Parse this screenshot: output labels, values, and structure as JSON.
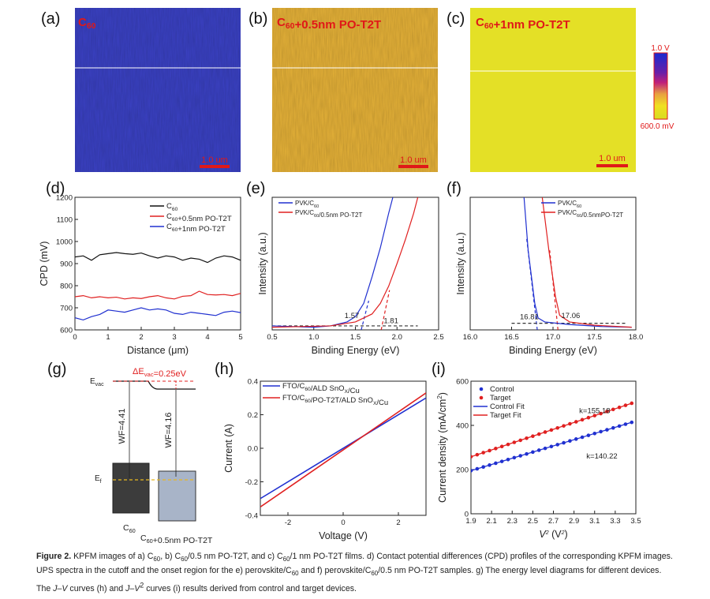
{
  "panels": {
    "a": {
      "label": "(a)",
      "image_label": "C60",
      "scale_bar": ""
    },
    "b": {
      "label": "(b)",
      "image_label": "C60+0.5nm PO-T2T",
      "scale_bar": "1.0 um"
    },
    "c": {
      "label": "(c)",
      "image_label": "C60+1nm PO-T2T",
      "scale_bar": "1.0 um"
    },
    "a_scale_bar": "1.0 um",
    "colorbar": {
      "max_label": "1.0 V",
      "min_label": "600.0 mV",
      "colors": [
        "#1a2ad0",
        "#6a1fa8",
        "#c0207a",
        "#e8a040",
        "#f0e020",
        "#e0e020"
      ]
    },
    "image_colors": {
      "a": "#3b42c4",
      "b": "#e6b238",
      "c": "#e4e026"
    },
    "d": {
      "label": "(d)"
    },
    "e": {
      "label": "(e)"
    },
    "f": {
      "label": "(f)"
    },
    "g": {
      "label": "(g)"
    },
    "h": {
      "label": "(h)"
    },
    "i": {
      "label": "(i)"
    }
  },
  "chart_data": [
    {
      "id": "d",
      "type": "line",
      "xlabel": "Distance (μm)",
      "ylabel": "CPD (mV)",
      "xlim": [
        0,
        5
      ],
      "ylim": [
        600,
        1200
      ],
      "xticks": [
        0,
        1,
        2,
        3,
        4,
        5
      ],
      "yticks": [
        600,
        700,
        800,
        900,
        1000,
        1100,
        1200
      ],
      "legend": "top-right",
      "x": [
        0,
        0.25,
        0.5,
        0.75,
        1,
        1.25,
        1.5,
        1.75,
        2,
        2.25,
        2.5,
        2.75,
        3,
        3.25,
        3.5,
        3.75,
        4,
        4.25,
        4.5,
        4.75,
        5
      ],
      "series": [
        {
          "name": "C60",
          "color": "#111111",
          "values": [
            930,
            935,
            915,
            940,
            945,
            950,
            945,
            942,
            948,
            935,
            925,
            935,
            930,
            915,
            925,
            920,
            905,
            925,
            935,
            930,
            915
          ]
        },
        {
          "name": "C60+0.5nm PO-T2T",
          "color": "#e02020",
          "values": [
            750,
            755,
            745,
            750,
            745,
            748,
            740,
            745,
            742,
            750,
            755,
            745,
            740,
            752,
            755,
            775,
            760,
            758,
            760,
            755,
            765
          ]
        },
        {
          "name": "C60+1nm PO-T2T",
          "color": "#2030d0",
          "values": [
            655,
            645,
            660,
            670,
            690,
            685,
            680,
            690,
            700,
            690,
            695,
            690,
            675,
            670,
            680,
            675,
            670,
            665,
            680,
            685,
            678
          ]
        }
      ]
    },
    {
      "id": "e",
      "type": "line",
      "xlabel": "Binding Energy (eV)",
      "ylabel": "Intensity (a.u.)",
      "xlim": [
        0.5,
        2.5
      ],
      "ylim": [
        0,
        1
      ],
      "xticks": [
        0.5,
        1.0,
        1.5,
        2.0,
        2.5
      ],
      "legend": "top-left",
      "series": [
        {
          "name": "PVK/C60",
          "color": "#2030d0",
          "points": [
            [
              0.5,
              0.03
            ],
            [
              1.0,
              0.02
            ],
            [
              1.2,
              0.03
            ],
            [
              1.4,
              0.06
            ],
            [
              1.5,
              0.1
            ],
            [
              1.6,
              0.2
            ],
            [
              1.7,
              0.4
            ],
            [
              1.8,
              0.62
            ],
            [
              1.9,
              0.88
            ],
            [
              1.95,
              1.0
            ]
          ]
        },
        {
          "name": "PVK/C60/0.5nm PO-T2T",
          "color": "#e02020",
          "points": [
            [
              0.5,
              0.02
            ],
            [
              1.2,
              0.03
            ],
            [
              1.5,
              0.06
            ],
            [
              1.7,
              0.12
            ],
            [
              1.8,
              0.2
            ],
            [
              1.9,
              0.33
            ],
            [
              2.0,
              0.5
            ],
            [
              2.1,
              0.68
            ],
            [
              2.2,
              0.88
            ],
            [
              2.25,
              1.0
            ]
          ]
        }
      ],
      "fits": [
        {
          "color": "#2030d0",
          "points": [
            [
              1.57,
              0
            ],
            [
              1.66,
              0.22
            ]
          ]
        },
        {
          "color": "#e02020",
          "points": [
            [
              1.81,
              0
            ],
            [
              1.91,
              0.3
            ]
          ]
        },
        {
          "color": "#333333",
          "points": [
            [
              0.5,
              0.03
            ],
            [
              2.25,
              0.03
            ]
          ]
        }
      ],
      "annotations": [
        {
          "text": "1.57",
          "color": "#2030d0",
          "x": 1.37,
          "y": 0.09
        },
        {
          "text": "1.81",
          "color": "#e02020",
          "x": 1.84,
          "y": 0.05
        }
      ]
    },
    {
      "id": "f",
      "type": "line",
      "xlabel": "Binding Energy (eV)",
      "ylabel": "Intensity (a.u.)",
      "xlim": [
        16.0,
        18.0
      ],
      "ylim": [
        0,
        1
      ],
      "xticks": [
        16.0,
        16.5,
        17.0,
        17.5,
        18.0
      ],
      "legend": "top-right",
      "series": [
        {
          "name": "PVK/C60",
          "color": "#2030d0",
          "points": [
            [
              16.65,
              1.0
            ],
            [
              16.7,
              0.6
            ],
            [
              16.78,
              0.2
            ],
            [
              16.82,
              0.09
            ],
            [
              16.9,
              0.06
            ],
            [
              17.2,
              0.04
            ],
            [
              17.6,
              0.025
            ],
            [
              17.95,
              0.02
            ]
          ]
        },
        {
          "name": "PVK/C60/0.5nmPO-T2T",
          "color": "#e02020",
          "points": [
            [
              16.87,
              1.0
            ],
            [
              16.95,
              0.6
            ],
            [
              17.03,
              0.25
            ],
            [
              17.08,
              0.11
            ],
            [
              17.2,
              0.06
            ],
            [
              17.5,
              0.035
            ],
            [
              17.95,
              0.02
            ]
          ]
        }
      ],
      "fits": [
        {
          "color": "#2030d0",
          "points": [
            [
              16.81,
              0
            ],
            [
              16.68,
              0.7
            ]
          ]
        },
        {
          "color": "#e02020",
          "points": [
            [
              17.06,
              0
            ],
            [
              16.96,
              0.6
            ]
          ]
        },
        {
          "color": "#333333",
          "points": [
            [
              16.5,
              0.05
            ],
            [
              17.9,
              0.05
            ]
          ]
        }
      ],
      "annotations": [
        {
          "text": "16.81",
          "color": "#2030d0",
          "x": 16.6,
          "y": 0.08
        },
        {
          "text": "17.06",
          "color": "#e02020",
          "x": 17.1,
          "y": 0.09
        }
      ]
    },
    {
      "id": "h",
      "type": "line",
      "xlabel": "Voltage (V)",
      "ylabel": "Current (A)",
      "xlim": [
        -3,
        3
      ],
      "ylim": [
        -0.4,
        0.4
      ],
      "xticks": [
        -2,
        0,
        2
      ],
      "yticks": [
        -0.4,
        -0.2,
        0.0,
        0.2,
        0.4
      ],
      "legend": "top-left",
      "series": [
        {
          "name": "FTO/C60/ALD SnOX/Cu",
          "color": "#2030d0",
          "points": [
            [
              -3,
              -0.3
            ],
            [
              3,
              0.3
            ]
          ]
        },
        {
          "name": "FTO/C60/PO-T2T/ALD SnOX/Cu",
          "color": "#e02020",
          "points": [
            [
              -3,
              -0.35
            ],
            [
              3,
              0.33
            ]
          ]
        }
      ]
    },
    {
      "id": "i",
      "type": "scatter",
      "xlabel": "V2 (V2)",
      "ylabel": "Current density (mA/cm2)",
      "xlim": [
        1.9,
        3.5
      ],
      "ylim": [
        0,
        600
      ],
      "xticks": [
        1.9,
        2.1,
        2.3,
        2.5,
        2.7,
        2.9,
        3.1,
        3.3,
        3.5
      ],
      "yticks": [
        0,
        200,
        400,
        600
      ],
      "legend": "top-left",
      "series": [
        {
          "name": "Control",
          "color": "#2030d0",
          "x_start": 1.9,
          "x_step": 0.06,
          "count": 27,
          "intercept": 195,
          "slope": 140.22
        },
        {
          "name": "Target",
          "color": "#e02020",
          "x_start": 1.9,
          "x_step": 0.06,
          "count": 27,
          "intercept": 258,
          "slope": 155.18
        }
      ],
      "fit_names": [
        "Control Fit",
        "Target Fit"
      ],
      "annotations": [
        {
          "text": "k=155.18",
          "color": "#e02020",
          "x": 2.95,
          "y": 455
        },
        {
          "text": "k=140.22",
          "color": "#2030d0",
          "x": 3.02,
          "y": 250
        }
      ]
    }
  ],
  "diagram_g": {
    "evac": "Evac",
    "ef": "Ef",
    "delta": "ΔEvac=0.25eV",
    "wf1": "WF=4.41",
    "wf2": "WF=4.16",
    "name1": "C60",
    "name2": "C60+0.5nm PO-T2T",
    "colors": {
      "block1": "#3c3c3c",
      "block2": "#a8b4c8",
      "fermi": "#e8b820",
      "delta": "#e02020"
    }
  },
  "caption": {
    "prefix": "Figure 2.",
    "text": "KPFM images of a) C60, b) C60/0.5 nm PO-T2T, and c) C60/1 nm PO-T2T films. d) Contact potential differences (CPD) profiles of the corresponding KPFM images. UPS spectra in the cutoff and the onset region for the e) perovskite/C60 and f) perovskite/C60/0.5 nm PO-T2T samples. g) The energy level diagrams for different devices. The J–V curves (h) and J–V 2 curves (i) results derived from control and target devices."
  }
}
